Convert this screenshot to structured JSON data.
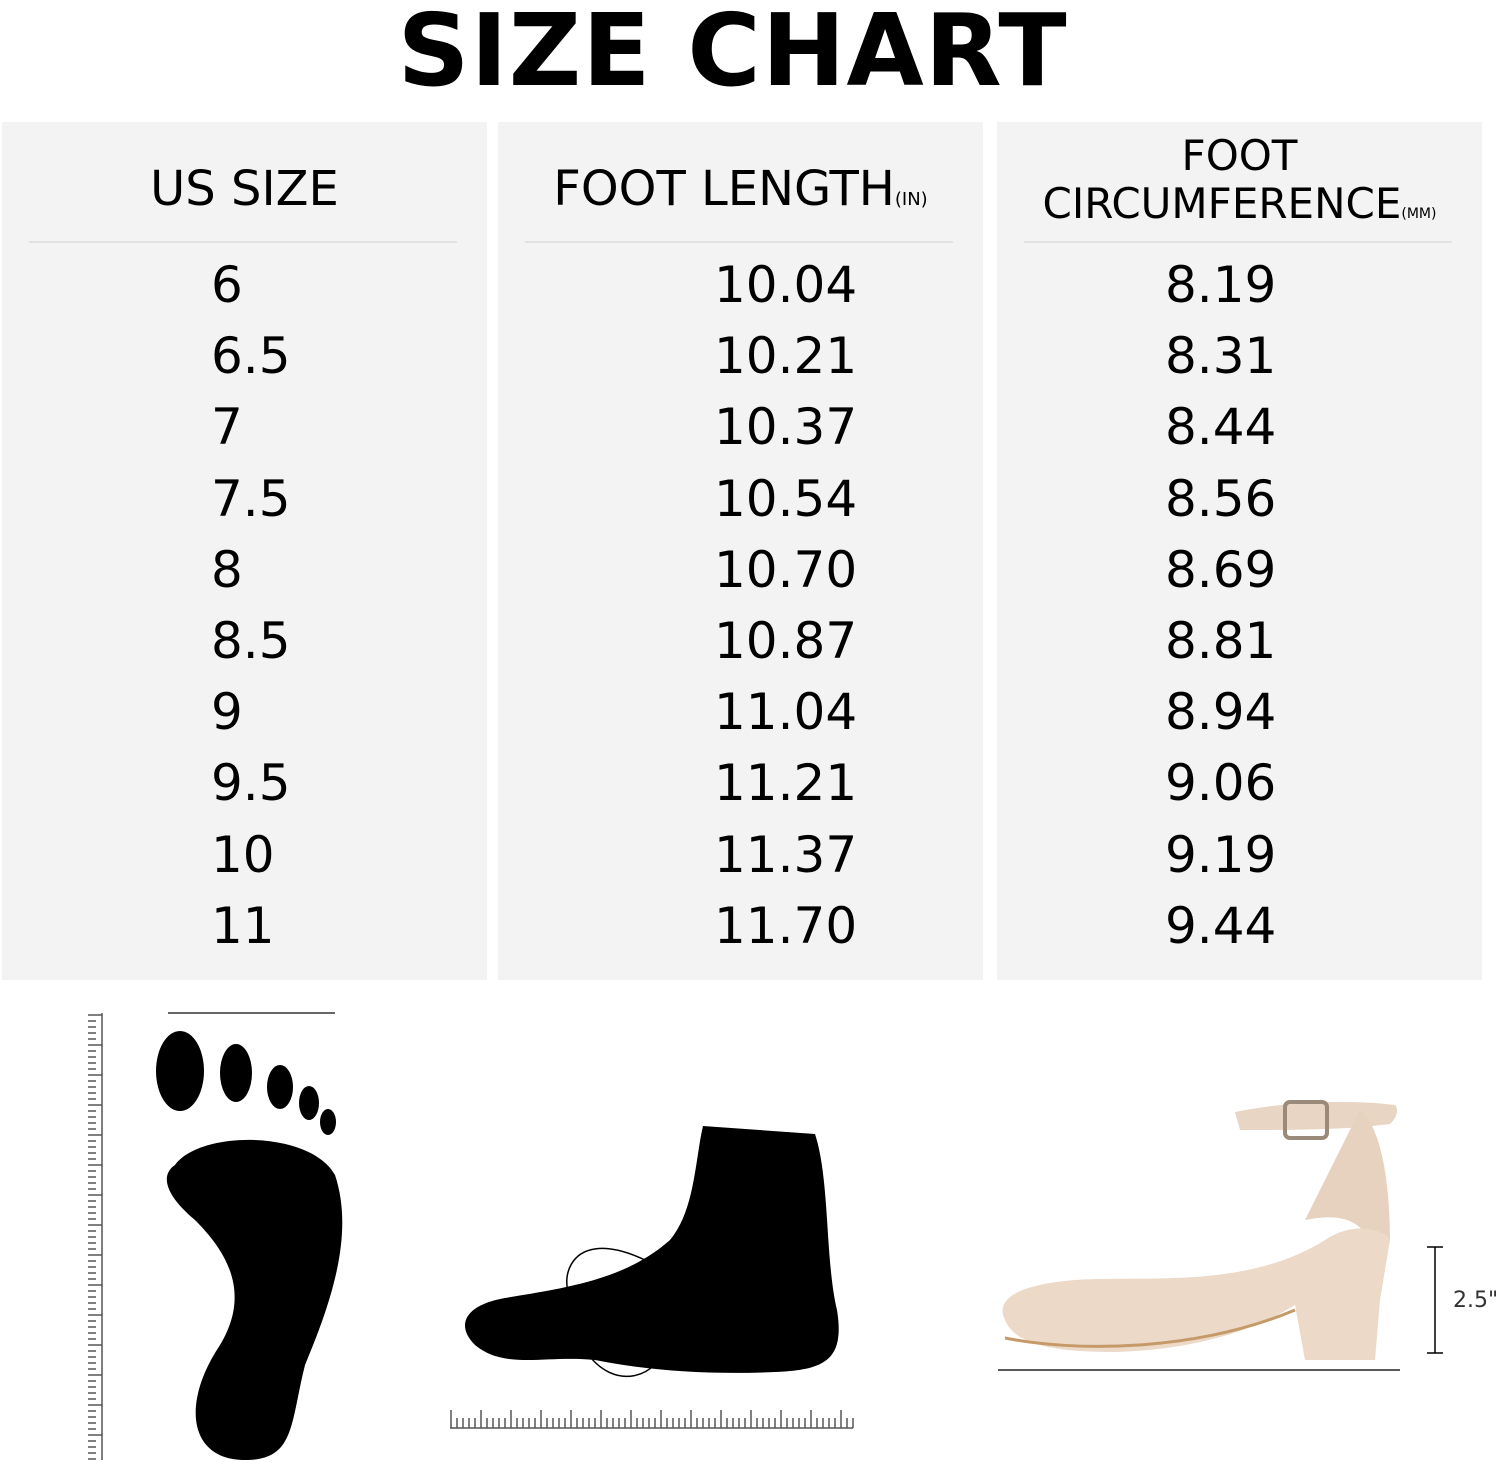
{
  "title": "SIZE CHART",
  "headers": {
    "us_size": "US SIZE",
    "foot_length": "FOOT LENGTH",
    "foot_length_unit": "(IN)",
    "foot_circ_line1": "FOOT",
    "foot_circ_line2": "CIRCUMFERENCE",
    "foot_circ_unit": "(MM)"
  },
  "chart_data": {
    "type": "table",
    "title": "SIZE CHART",
    "columns": [
      "US SIZE",
      "FOOT LENGTH(IN)",
      "FOOT CIRCUMFERENCE(MM)"
    ],
    "rows": [
      [
        "6",
        "10.04",
        "8.19"
      ],
      [
        "6.5",
        "10.21",
        "8.31"
      ],
      [
        "7",
        "10.37",
        "8.44"
      ],
      [
        "7.5",
        "10.54",
        "8.56"
      ],
      [
        "8",
        "10.70",
        "8.69"
      ],
      [
        "8.5",
        "10.87",
        "8.81"
      ],
      [
        "9",
        "11.04",
        "8.94"
      ],
      [
        "9.5",
        "11.21",
        "9.06"
      ],
      [
        "10",
        "11.37",
        "9.19"
      ],
      [
        "11",
        "11.70",
        "9.44"
      ]
    ]
  },
  "heel_height_label": "2.5\"",
  "colors": {
    "panel": "#f3f3f3",
    "shoe": "#ecd9c8",
    "divider": "#e2e2e2"
  }
}
